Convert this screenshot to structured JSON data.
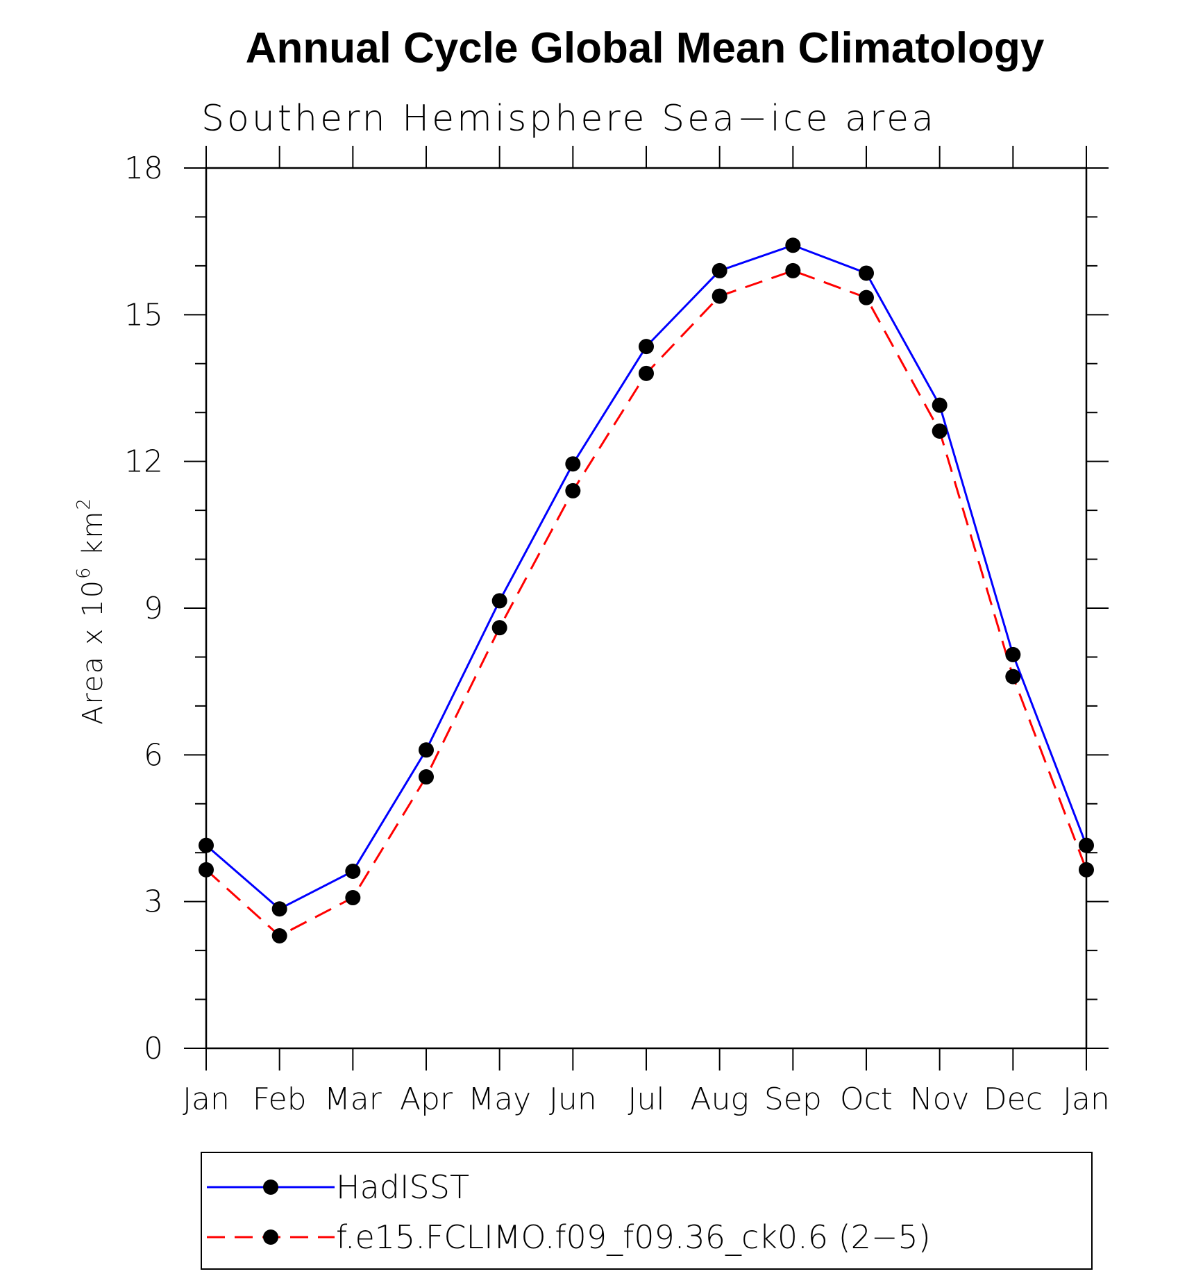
{
  "chart_data": {
    "type": "line",
    "title": "Annual Cycle Global Mean Climatology",
    "subtitle": "Southern Hemisphere Sea−ice area",
    "ylabel_main": "Area x 10",
    "ylabel_exp": "6",
    "ylabel_unit": " km",
    "ylabel_unit_exp": "2",
    "categories": [
      "Jan",
      "Feb",
      "Mar",
      "Apr",
      "May",
      "Jun",
      "Jul",
      "Aug",
      "Sep",
      "Oct",
      "Nov",
      "Dec",
      "Jan"
    ],
    "ylim": [
      0,
      18
    ],
    "yticks": [
      0,
      3,
      6,
      9,
      12,
      15,
      18
    ],
    "series": [
      {
        "name": "HadISST",
        "color": "#0000ff",
        "dash": "solid",
        "values": [
          4.15,
          2.85,
          3.62,
          6.1,
          9.15,
          11.95,
          14.35,
          15.9,
          16.42,
          15.85,
          13.15,
          8.05,
          4.15
        ]
      },
      {
        "name": "f.e15.FCLIMO.f09_f09.36_ck0.6 (2−5)",
        "color": "#ff0000",
        "dash": "dashed",
        "values": [
          3.65,
          2.3,
          3.08,
          5.55,
          8.6,
          11.4,
          13.8,
          15.38,
          15.9,
          15.35,
          12.62,
          7.6,
          3.65
        ]
      }
    ],
    "legend_position": "bottom"
  }
}
